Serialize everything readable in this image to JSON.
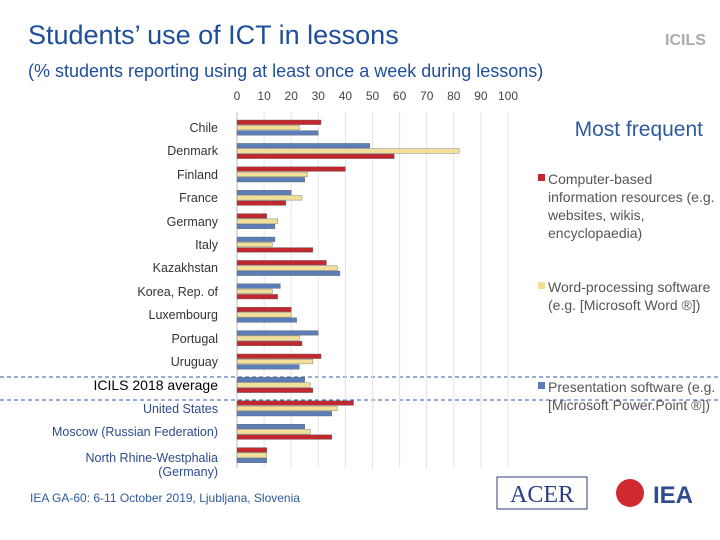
{
  "chart_data": {
    "type": "bar",
    "orientation": "horizontal",
    "title": "Students’ use of ICT in lessons",
    "subtitle": "(% students reporting using at least once a week during lessons)",
    "annotation": "Most frequent",
    "categories": [
      "Chile",
      "Denmark",
      "Finland",
      "France",
      "Germany",
      "Italy",
      "Kazakhstan",
      "Korea, Rep. of",
      "Luxembourg",
      "Portugal",
      "Uruguay",
      "ICILS 2018 average",
      "United States",
      "Moscow (Russian Federation)",
      "North Rhine-Westphalia\n(Germany)"
    ],
    "series": [
      {
        "name": "Computer-based information resources (e.g. websites, wikis, encyclopaedia)",
        "color": "#c0282e",
        "values": [
          31,
          58,
          40,
          18,
          11,
          28,
          33,
          15,
          20,
          24,
          31,
          28,
          43,
          35,
          11
        ]
      },
      {
        "name": "Word-processing software (e.g. [Microsoft Word ®])",
        "color": "#f1df9a",
        "values": [
          23,
          82,
          26,
          24,
          15,
          13,
          37,
          13,
          20,
          23,
          28,
          27,
          37,
          27,
          11
        ]
      },
      {
        "name": "Presentation software (e.g. [Microsoft Power.Point ®])",
        "color": "#5b7db8",
        "values": [
          30,
          49,
          25,
          20,
          14,
          14,
          38,
          16,
          22,
          30,
          23,
          25,
          35,
          25,
          11
        ]
      }
    ],
    "xlim": [
      0,
      100
    ],
    "xticks": [
      0,
      10,
      20,
      30,
      40,
      50,
      60,
      70,
      80,
      90,
      100
    ],
    "grid": true
  },
  "footer": {
    "text": "IEA GA-60: 6-11 October 2019, Ljubljana, Slovenia",
    "logo_left": "ACER",
    "logo_right": "IEA",
    "logo_top": "ICILS"
  }
}
